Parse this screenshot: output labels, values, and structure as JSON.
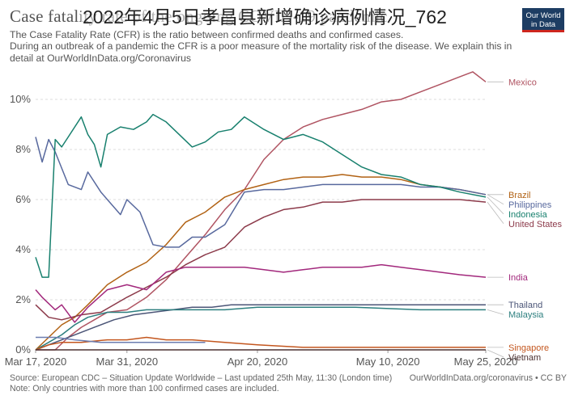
{
  "header": {
    "title": "Case fatality rate of the ongoing COVID-19 pandemic",
    "overlay_title": "2022年4月5日孝昌县新增确诊病例情况_762",
    "subtitle_lines": [
      "The Case Fatality Rate (CFR) is the ratio between confirmed deaths and confirmed cases.",
      " During an outbreak of a pandemic the CFR is a poor measure of the mortality risk of the disease. We explain this in",
      "detail at OurWorldInData.org/Coronavirus"
    ],
    "logo_line1": "Our World",
    "logo_line2": "in Data",
    "logo_colors": {
      "background": "#1d3d63",
      "stripe": "#ce261e"
    }
  },
  "footer": {
    "source": "Source: European CDC – Situation Update Worldwide – Last updated 25th May, 11:30 (London time)",
    "note": "Note: Only countries with more than 100 confirmed cases are included.",
    "credit": "OurWorldInData.org/coronavirus • CC BY"
  },
  "chart_data": {
    "type": "line",
    "x_unit": "date",
    "x_start": "2020-03-17",
    "x_end": "2020-05-25",
    "x_ticks": [
      "Mar 17, 2020",
      "Mar 31, 2020",
      "Apr 20, 2020",
      "May 10, 2020",
      "May 25, 2020"
    ],
    "x_tick_dates": [
      "2020-03-17",
      "2020-03-31",
      "2020-04-20",
      "2020-05-10",
      "2020-05-25"
    ],
    "y_unit": "%",
    "y_ticks": [
      "0%",
      "2%",
      "4%",
      "6%",
      "8%",
      "10%"
    ],
    "y_tick_values": [
      0,
      2,
      4,
      6,
      8,
      10
    ],
    "ylim": [
      0,
      11
    ],
    "grid": "horizontal dashed",
    "legend": "labels at line ends (right)",
    "series": [
      {
        "name": "Mexico",
        "color": "#b05462",
        "points": [
          [
            "2020-03-17",
            0
          ],
          [
            "2020-03-20",
            0
          ],
          [
            "2020-03-22",
            0.5
          ],
          [
            "2020-03-24",
            0.9
          ],
          [
            "2020-03-26",
            1.2
          ],
          [
            "2020-03-28",
            1.5
          ],
          [
            "2020-03-31",
            1.6
          ],
          [
            "2020-04-03",
            2.1
          ],
          [
            "2020-04-06",
            2.8
          ],
          [
            "2020-04-09",
            3.7
          ],
          [
            "2020-04-12",
            4.6
          ],
          [
            "2020-04-15",
            5.6
          ],
          [
            "2020-04-18",
            6.4
          ],
          [
            "2020-04-21",
            7.6
          ],
          [
            "2020-04-24",
            8.4
          ],
          [
            "2020-04-27",
            8.9
          ],
          [
            "2020-04-30",
            9.2
          ],
          [
            "2020-05-03",
            9.4
          ],
          [
            "2020-05-06",
            9.6
          ],
          [
            "2020-05-09",
            9.9
          ],
          [
            "2020-05-12",
            10.0
          ],
          [
            "2020-05-15",
            10.3
          ],
          [
            "2020-05-18",
            10.6
          ],
          [
            "2020-05-21",
            10.9
          ],
          [
            "2020-05-23",
            11.1
          ],
          [
            "2020-05-25",
            10.7
          ]
        ]
      },
      {
        "name": "Brazil",
        "color": "#b16214",
        "points": [
          [
            "2020-03-17",
            0
          ],
          [
            "2020-03-19",
            0.5
          ],
          [
            "2020-03-21",
            1.0
          ],
          [
            "2020-03-23",
            1.3
          ],
          [
            "2020-03-25",
            1.8
          ],
          [
            "2020-03-28",
            2.6
          ],
          [
            "2020-03-31",
            3.1
          ],
          [
            "2020-04-03",
            3.5
          ],
          [
            "2020-04-06",
            4.2
          ],
          [
            "2020-04-09",
            5.1
          ],
          [
            "2020-04-12",
            5.5
          ],
          [
            "2020-04-15",
            6.1
          ],
          [
            "2020-04-18",
            6.4
          ],
          [
            "2020-04-21",
            6.6
          ],
          [
            "2020-04-24",
            6.8
          ],
          [
            "2020-04-27",
            6.9
          ],
          [
            "2020-04-30",
            6.9
          ],
          [
            "2020-05-03",
            7.0
          ],
          [
            "2020-05-06",
            6.9
          ],
          [
            "2020-05-09",
            6.9
          ],
          [
            "2020-05-12",
            6.8
          ],
          [
            "2020-05-15",
            6.6
          ],
          [
            "2020-05-18",
            6.5
          ],
          [
            "2020-05-21",
            6.4
          ],
          [
            "2020-05-25",
            6.2
          ]
        ]
      },
      {
        "name": "Philippines",
        "color": "#58699e",
        "points": [
          [
            "2020-03-17",
            8.5
          ],
          [
            "2020-03-18",
            7.5
          ],
          [
            "2020-03-19",
            8.4
          ],
          [
            "2020-03-20",
            7.9
          ],
          [
            "2020-03-22",
            6.6
          ],
          [
            "2020-03-24",
            6.4
          ],
          [
            "2020-03-25",
            7.1
          ],
          [
            "2020-03-27",
            6.3
          ],
          [
            "2020-03-28",
            6.0
          ],
          [
            "2020-03-30",
            5.4
          ],
          [
            "2020-03-31",
            6.0
          ],
          [
            "2020-04-02",
            5.5
          ],
          [
            "2020-04-04",
            4.2
          ],
          [
            "2020-04-06",
            4.1
          ],
          [
            "2020-04-08",
            4.1
          ],
          [
            "2020-04-10",
            4.5
          ],
          [
            "2020-04-12",
            4.5
          ],
          [
            "2020-04-15",
            5.0
          ],
          [
            "2020-04-18",
            6.3
          ],
          [
            "2020-04-21",
            6.4
          ],
          [
            "2020-04-24",
            6.4
          ],
          [
            "2020-04-27",
            6.5
          ],
          [
            "2020-04-30",
            6.6
          ],
          [
            "2020-05-03",
            6.6
          ],
          [
            "2020-05-06",
            6.6
          ],
          [
            "2020-05-09",
            6.6
          ],
          [
            "2020-05-12",
            6.6
          ],
          [
            "2020-05-15",
            6.5
          ],
          [
            "2020-05-18",
            6.5
          ],
          [
            "2020-05-21",
            6.4
          ],
          [
            "2020-05-25",
            6.2
          ]
        ]
      },
      {
        "name": "Indonesia",
        "color": "#18806e",
        "points": [
          [
            "2020-03-17",
            3.7
          ],
          [
            "2020-03-18",
            2.9
          ],
          [
            "2020-03-19",
            2.9
          ],
          [
            "2020-03-20",
            8.4
          ],
          [
            "2020-03-21",
            8.1
          ],
          [
            "2020-03-22",
            8.5
          ],
          [
            "2020-03-24",
            9.3
          ],
          [
            "2020-03-25",
            8.6
          ],
          [
            "2020-03-26",
            8.2
          ],
          [
            "2020-03-27",
            7.3
          ],
          [
            "2020-03-28",
            8.6
          ],
          [
            "2020-03-30",
            8.9
          ],
          [
            "2020-04-01",
            8.8
          ],
          [
            "2020-04-03",
            9.1
          ],
          [
            "2020-04-04",
            9.4
          ],
          [
            "2020-04-06",
            9.1
          ],
          [
            "2020-04-08",
            8.6
          ],
          [
            "2020-04-10",
            8.1
          ],
          [
            "2020-04-12",
            8.3
          ],
          [
            "2020-04-14",
            8.7
          ],
          [
            "2020-04-16",
            8.8
          ],
          [
            "2020-04-18",
            9.3
          ],
          [
            "2020-04-21",
            8.8
          ],
          [
            "2020-04-24",
            8.4
          ],
          [
            "2020-04-27",
            8.6
          ],
          [
            "2020-04-30",
            8.3
          ],
          [
            "2020-05-03",
            7.8
          ],
          [
            "2020-05-06",
            7.3
          ],
          [
            "2020-05-09",
            7.0
          ],
          [
            "2020-05-12",
            6.9
          ],
          [
            "2020-05-15",
            6.6
          ],
          [
            "2020-05-18",
            6.5
          ],
          [
            "2020-05-21",
            6.3
          ],
          [
            "2020-05-25",
            6.1
          ]
        ]
      },
      {
        "name": "United States",
        "color": "#8c3a4a",
        "points": [
          [
            "2020-03-17",
            1.8
          ],
          [
            "2020-03-19",
            1.3
          ],
          [
            "2020-03-21",
            1.2
          ],
          [
            "2020-03-24",
            1.4
          ],
          [
            "2020-03-27",
            1.5
          ],
          [
            "2020-03-31",
            2.1
          ],
          [
            "2020-04-03",
            2.5
          ],
          [
            "2020-04-06",
            2.9
          ],
          [
            "2020-04-09",
            3.4
          ],
          [
            "2020-04-12",
            3.8
          ],
          [
            "2020-04-15",
            4.1
          ],
          [
            "2020-04-18",
            4.9
          ],
          [
            "2020-04-21",
            5.3
          ],
          [
            "2020-04-24",
            5.6
          ],
          [
            "2020-04-27",
            5.7
          ],
          [
            "2020-04-30",
            5.9
          ],
          [
            "2020-05-03",
            5.9
          ],
          [
            "2020-05-06",
            6.0
          ],
          [
            "2020-05-09",
            6.0
          ],
          [
            "2020-05-12",
            6.0
          ],
          [
            "2020-05-15",
            6.0
          ],
          [
            "2020-05-18",
            6.0
          ],
          [
            "2020-05-21",
            6.0
          ],
          [
            "2020-05-25",
            5.9
          ]
        ]
      },
      {
        "name": "India",
        "color": "#a2287c",
        "points": [
          [
            "2020-03-17",
            2.4
          ],
          [
            "2020-03-18",
            2.1
          ],
          [
            "2020-03-20",
            1.6
          ],
          [
            "2020-03-21",
            1.8
          ],
          [
            "2020-03-23",
            1.1
          ],
          [
            "2020-03-25",
            1.7
          ],
          [
            "2020-03-28",
            2.4
          ],
          [
            "2020-03-31",
            2.6
          ],
          [
            "2020-04-03",
            2.4
          ],
          [
            "2020-04-06",
            3.1
          ],
          [
            "2020-04-09",
            3.3
          ],
          [
            "2020-04-12",
            3.3
          ],
          [
            "2020-04-15",
            3.3
          ],
          [
            "2020-04-18",
            3.3
          ],
          [
            "2020-04-21",
            3.2
          ],
          [
            "2020-04-24",
            3.1
          ],
          [
            "2020-04-27",
            3.2
          ],
          [
            "2020-04-30",
            3.3
          ],
          [
            "2020-05-03",
            3.3
          ],
          [
            "2020-05-06",
            3.3
          ],
          [
            "2020-05-09",
            3.4
          ],
          [
            "2020-05-12",
            3.3
          ],
          [
            "2020-05-15",
            3.2
          ],
          [
            "2020-05-18",
            3.1
          ],
          [
            "2020-05-21",
            3.0
          ],
          [
            "2020-05-25",
            2.9
          ]
        ]
      },
      {
        "name": "Thailand",
        "color": "#4b5577",
        "points": [
          [
            "2020-03-17",
            0
          ],
          [
            "2020-03-20",
            0.3
          ],
          [
            "2020-03-23",
            0.6
          ],
          [
            "2020-03-26",
            0.9
          ],
          [
            "2020-03-29",
            1.2
          ],
          [
            "2020-04-01",
            1.4
          ],
          [
            "2020-04-04",
            1.5
          ],
          [
            "2020-04-07",
            1.6
          ],
          [
            "2020-04-10",
            1.7
          ],
          [
            "2020-04-13",
            1.7
          ],
          [
            "2020-04-16",
            1.8
          ],
          [
            "2020-04-20",
            1.8
          ],
          [
            "2020-04-25",
            1.8
          ],
          [
            "2020-05-01",
            1.8
          ],
          [
            "2020-05-10",
            1.8
          ],
          [
            "2020-05-18",
            1.8
          ],
          [
            "2020-05-25",
            1.8
          ]
        ]
      },
      {
        "name": "Malaysia",
        "color": "#2c7f7f",
        "points": [
          [
            "2020-03-17",
            0
          ],
          [
            "2020-03-19",
            0.3
          ],
          [
            "2020-03-21",
            0.6
          ],
          [
            "2020-03-23",
            1.0
          ],
          [
            "2020-03-25",
            1.3
          ],
          [
            "2020-03-28",
            1.5
          ],
          [
            "2020-03-31",
            1.5
          ],
          [
            "2020-04-03",
            1.6
          ],
          [
            "2020-04-08",
            1.6
          ],
          [
            "2020-04-15",
            1.6
          ],
          [
            "2020-04-20",
            1.7
          ],
          [
            "2020-04-27",
            1.7
          ],
          [
            "2020-05-05",
            1.7
          ],
          [
            "2020-05-15",
            1.6
          ],
          [
            "2020-05-25",
            1.6
          ]
        ]
      },
      {
        "name": "Singapore",
        "color": "#c3561e",
        "points": [
          [
            "2020-03-17",
            0
          ],
          [
            "2020-03-19",
            0.2
          ],
          [
            "2020-03-21",
            0.3
          ],
          [
            "2020-03-24",
            0.3
          ],
          [
            "2020-03-28",
            0.4
          ],
          [
            "2020-03-31",
            0.4
          ],
          [
            "2020-04-03",
            0.5
          ],
          [
            "2020-04-06",
            0.4
          ],
          [
            "2020-04-10",
            0.4
          ],
          [
            "2020-04-15",
            0.3
          ],
          [
            "2020-04-20",
            0.2
          ],
          [
            "2020-04-27",
            0.1
          ],
          [
            "2020-05-05",
            0.1
          ],
          [
            "2020-05-15",
            0.1
          ],
          [
            "2020-05-25",
            0.1
          ]
        ]
      },
      {
        "name": "Vietnam",
        "color": "#4d3232",
        "points": [
          [
            "2020-03-17",
            0
          ],
          [
            "2020-04-01",
            0
          ],
          [
            "2020-04-20",
            0
          ],
          [
            "2020-05-10",
            0
          ],
          [
            "2020-05-25",
            0
          ]
        ]
      },
      {
        "name": "",
        "color": "#6c7db0",
        "points": [
          [
            "2020-03-17",
            0.5
          ],
          [
            "2020-03-20",
            0.5
          ],
          [
            "2020-03-23",
            0.4
          ],
          [
            "2020-03-27",
            0.3
          ],
          [
            "2020-03-31",
            0.3
          ],
          [
            "2020-04-04",
            0.3
          ],
          [
            "2020-04-08",
            0.3
          ],
          [
            "2020-04-12",
            0.3
          ]
        ]
      }
    ],
    "end_labels": [
      {
        "text": "Mexico",
        "color": "#b05462",
        "series": "Mexico"
      },
      {
        "text": "Brazil",
        "color": "#b16214",
        "series": "Brazil"
      },
      {
        "text": "Philippines",
        "color": "#58699e",
        "series": "Philippines"
      },
      {
        "text": "Indonesia",
        "color": "#18806e",
        "series": "Indonesia"
      },
      {
        "text": "United States",
        "color": "#8c3a4a",
        "series": "United States"
      },
      {
        "text": "India",
        "color": "#a2287c",
        "series": "India"
      },
      {
        "text": "Thailand",
        "color": "#4b5577",
        "series": "Thailand"
      },
      {
        "text": "Malaysia",
        "color": "#2c7f7f",
        "series": "Malaysia"
      },
      {
        "text": "Singapore",
        "color": "#c3561e",
        "series": "Singapore"
      },
      {
        "text": "Vietnam",
        "color": "#4d3232",
        "series": "Vietnam"
      }
    ]
  }
}
